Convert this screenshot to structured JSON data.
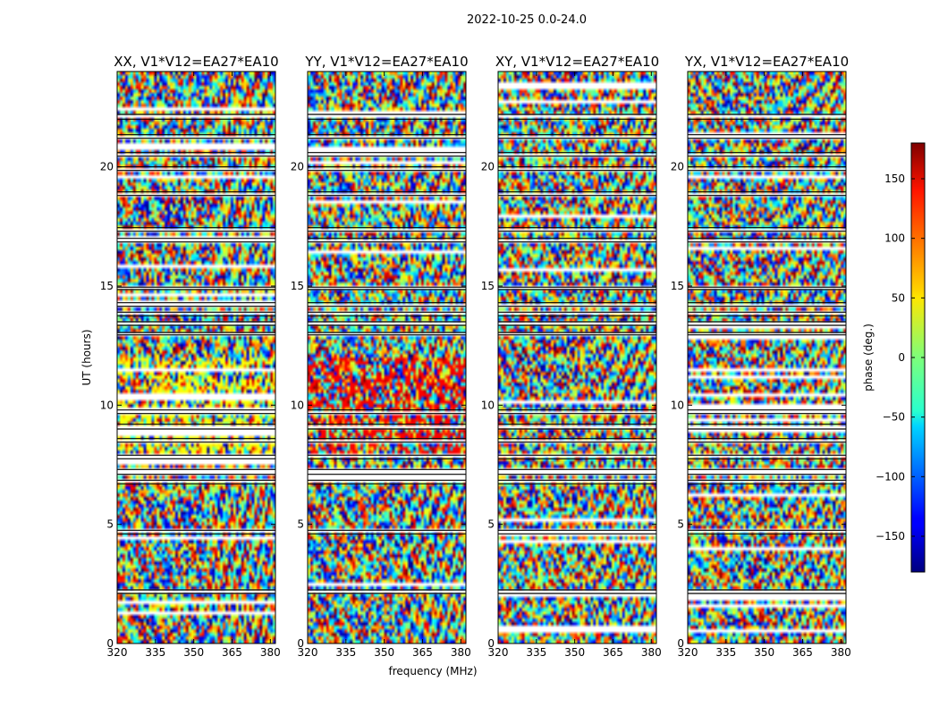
{
  "chart_data": {
    "type": "heatmap",
    "suptitle": "2022-10-25 0.0-24.0",
    "xlabel": "frequency (MHz)",
    "ylabel": "UT (hours)",
    "x_range_mhz": [
      320,
      382
    ],
    "y_range_hours": [
      0,
      24
    ],
    "xticks": [
      320,
      335,
      350,
      365,
      380
    ],
    "yticks": [
      0,
      5,
      10,
      15,
      20
    ],
    "panels": [
      {
        "title": "XX, V1*V12=EA27*EA10",
        "polarization": "XX"
      },
      {
        "title": "YY, V1*V12=EA27*EA10",
        "polarization": "YY"
      },
      {
        "title": "XY, V1*V12=EA27*EA10",
        "polarization": "XY"
      },
      {
        "title": "YX, V1*V12=EA27*EA10",
        "polarization": "YX"
      }
    ],
    "colorbar": {
      "label": "phase (deg.)",
      "range": [
        -180,
        180
      ],
      "ticks": [
        150,
        100,
        50,
        0,
        -50,
        -100,
        -150
      ],
      "colormap": "jet"
    },
    "flagged_ut_hours": [
      [
        2.1,
        2.25
      ],
      [
        4.6,
        4.75
      ],
      [
        6.7,
        6.85
      ],
      [
        7.1,
        7.3
      ],
      [
        7.75,
        7.9
      ],
      [
        8.45,
        8.6
      ],
      [
        9.0,
        9.2
      ],
      [
        9.65,
        9.8
      ],
      [
        12.95,
        13.05
      ],
      [
        13.35,
        13.5
      ],
      [
        13.75,
        13.9
      ],
      [
        14.15,
        14.3
      ],
      [
        14.85,
        14.95
      ],
      [
        16.85,
        17.0
      ],
      [
        17.3,
        17.45
      ],
      [
        18.8,
        18.95
      ],
      [
        19.85,
        20.0
      ],
      [
        20.45,
        20.6
      ],
      [
        21.2,
        21.35
      ],
      [
        22.0,
        22.2
      ]
    ]
  }
}
